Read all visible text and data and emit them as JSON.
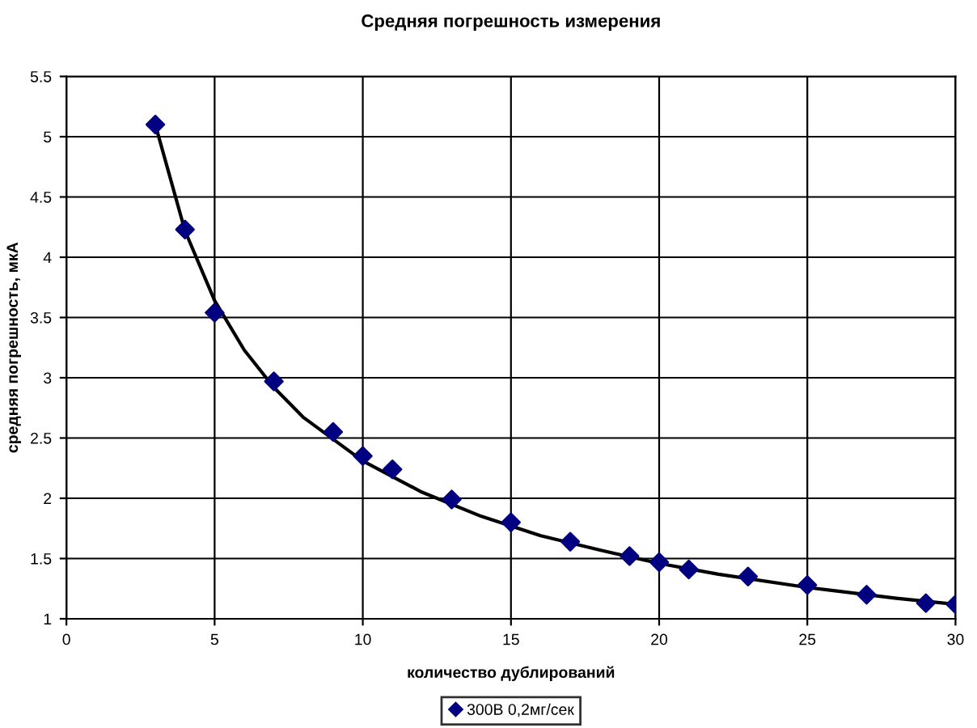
{
  "chart_data": {
    "type": "scatter",
    "title": "Средняя погрешность измерения",
    "xlabel": "количество дублирований",
    "ylabel": "средняя погрешность, мкА",
    "series": [
      {
        "name": "300В 0,2мг/сек",
        "color": "#000080",
        "marker": "diamond",
        "x": [
          3,
          4,
          5,
          7,
          9,
          10,
          11,
          13,
          15,
          17,
          19,
          20,
          21,
          23,
          25,
          27,
          29,
          30
        ],
        "values": [
          5.1,
          4.23,
          3.54,
          2.97,
          2.55,
          2.35,
          2.24,
          1.99,
          1.8,
          1.64,
          1.52,
          1.47,
          1.41,
          1.35,
          1.28,
          1.2,
          1.13,
          1.12
        ]
      },
      {
        "type": "line",
        "color": "#000000",
        "marker": "none",
        "x": [
          3,
          4,
          5,
          6,
          7,
          8,
          10,
          12,
          14,
          16,
          18,
          20,
          22,
          25,
          28,
          30
        ],
        "values": [
          5.1,
          4.22,
          3.64,
          3.23,
          2.92,
          2.67,
          2.31,
          2.05,
          1.85,
          1.69,
          1.57,
          1.46,
          1.37,
          1.26,
          1.17,
          1.12
        ]
      }
    ],
    "xlim": [
      0,
      30
    ],
    "xticks": [
      0,
      5,
      10,
      15,
      20,
      25,
      30
    ],
    "ylim": [
      1,
      5.5
    ],
    "yticks": [
      1,
      1.5,
      2,
      2.5,
      3,
      3.5,
      4,
      4.5,
      5,
      5.5
    ],
    "grid": true,
    "legend": "bottom"
  }
}
